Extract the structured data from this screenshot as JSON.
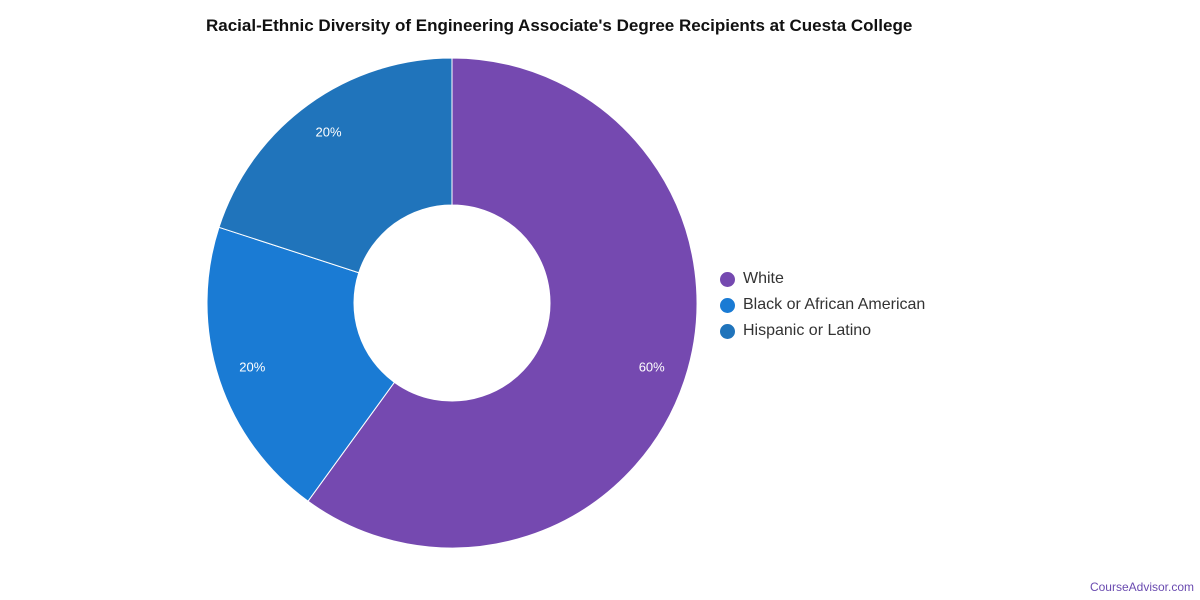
{
  "chart_data": {
    "type": "pie",
    "title": "Racial-Ethnic Diversity of Engineering Associate's Degree Recipients at Cuesta College",
    "categories": [
      "White",
      "Black or African American",
      "Hispanic or Latino"
    ],
    "values": [
      60,
      20,
      20
    ],
    "labels": [
      "60%",
      "20%",
      "20%"
    ],
    "colors": [
      "#7549b0",
      "#1a7bd4",
      "#2074bb"
    ],
    "legend": "right",
    "donut": true
  },
  "credit": "CourseAdvisor.com"
}
